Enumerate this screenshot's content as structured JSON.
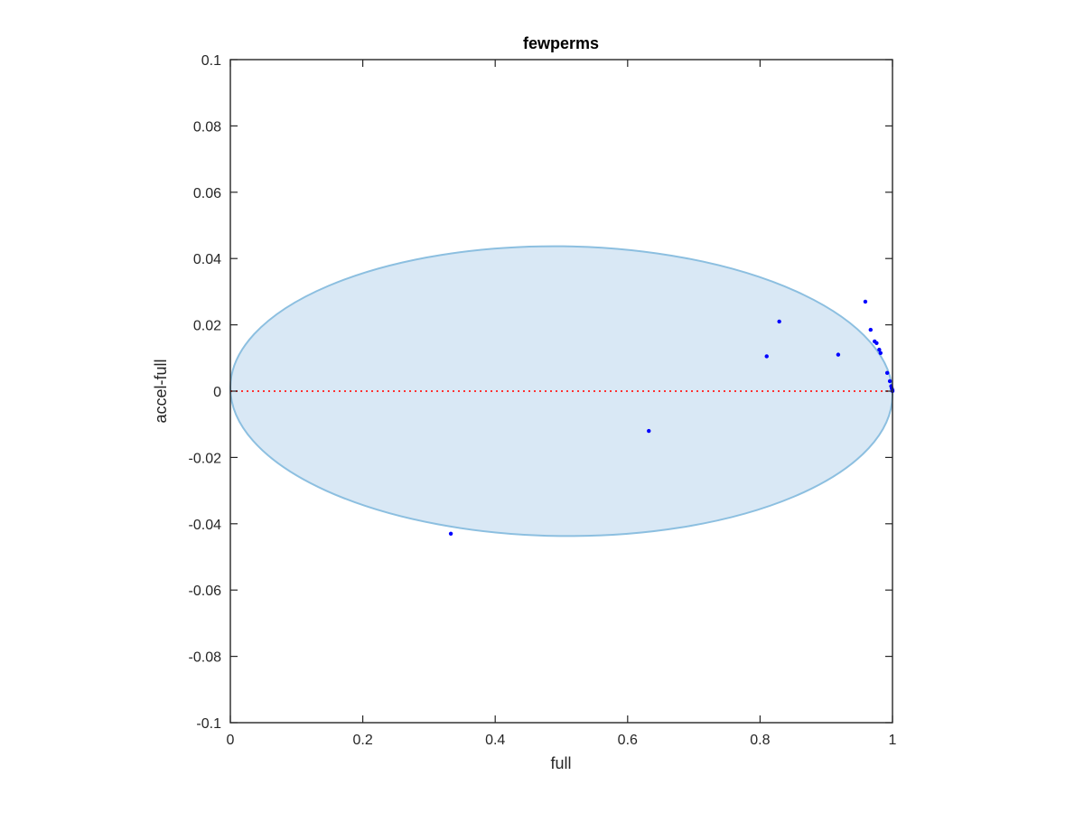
{
  "chart_data": {
    "type": "scatter",
    "title": "fewperms",
    "xlabel": "full",
    "ylabel": "accel-full",
    "xlim": [
      0,
      1
    ],
    "ylim": [
      -0.1,
      0.1
    ],
    "xticks": [
      0,
      0.2,
      0.4,
      0.6,
      0.8,
      1
    ],
    "xtick_labels": [
      "0",
      "0.2",
      "0.4",
      "0.6",
      "0.8",
      "1"
    ],
    "yticks": [
      -0.1,
      -0.08,
      -0.06,
      -0.04,
      -0.02,
      0,
      0.02,
      0.04,
      0.06,
      0.08,
      0.1
    ],
    "ytick_labels": [
      "-0.1",
      "-0.08",
      "-0.06",
      "-0.04",
      "-0.02",
      "0",
      "0.02",
      "0.04",
      "0.06",
      "0.08",
      "0.1"
    ],
    "grid": false,
    "points": [
      {
        "x": 0.333,
        "y": -0.043
      },
      {
        "x": 0.632,
        "y": -0.012
      },
      {
        "x": 0.81,
        "y": 0.0105
      },
      {
        "x": 0.829,
        "y": 0.021
      },
      {
        "x": 0.918,
        "y": 0.011
      },
      {
        "x": 0.959,
        "y": 0.027
      },
      {
        "x": 0.967,
        "y": 0.0185
      },
      {
        "x": 0.973,
        "y": 0.015
      },
      {
        "x": 0.976,
        "y": 0.0145
      },
      {
        "x": 0.98,
        "y": 0.0125
      },
      {
        "x": 0.982,
        "y": 0.0115
      },
      {
        "x": 0.992,
        "y": 0.0055
      },
      {
        "x": 0.996,
        "y": 0.003
      },
      {
        "x": 0.998,
        "y": 0.0015
      },
      {
        "x": 0.999,
        "y": 0.0008
      },
      {
        "x": 1.0,
        "y": 0.0003
      },
      {
        "x": 1.0,
        "y": 0.0
      }
    ],
    "ellipse": {
      "center_x": 0.5,
      "center_y": 0.0,
      "radius_x": 0.5,
      "radius_y": 0.0437,
      "tilt": -0.0025
    },
    "reference_line": {
      "y": 0,
      "style": "dotted"
    },
    "colors": {
      "points": "#0000ff",
      "ellipse_fill": "#d9e8f5",
      "ellipse_edge": "#8cbfe0",
      "reference_line": "#ff3333",
      "axes": "#262626"
    }
  }
}
